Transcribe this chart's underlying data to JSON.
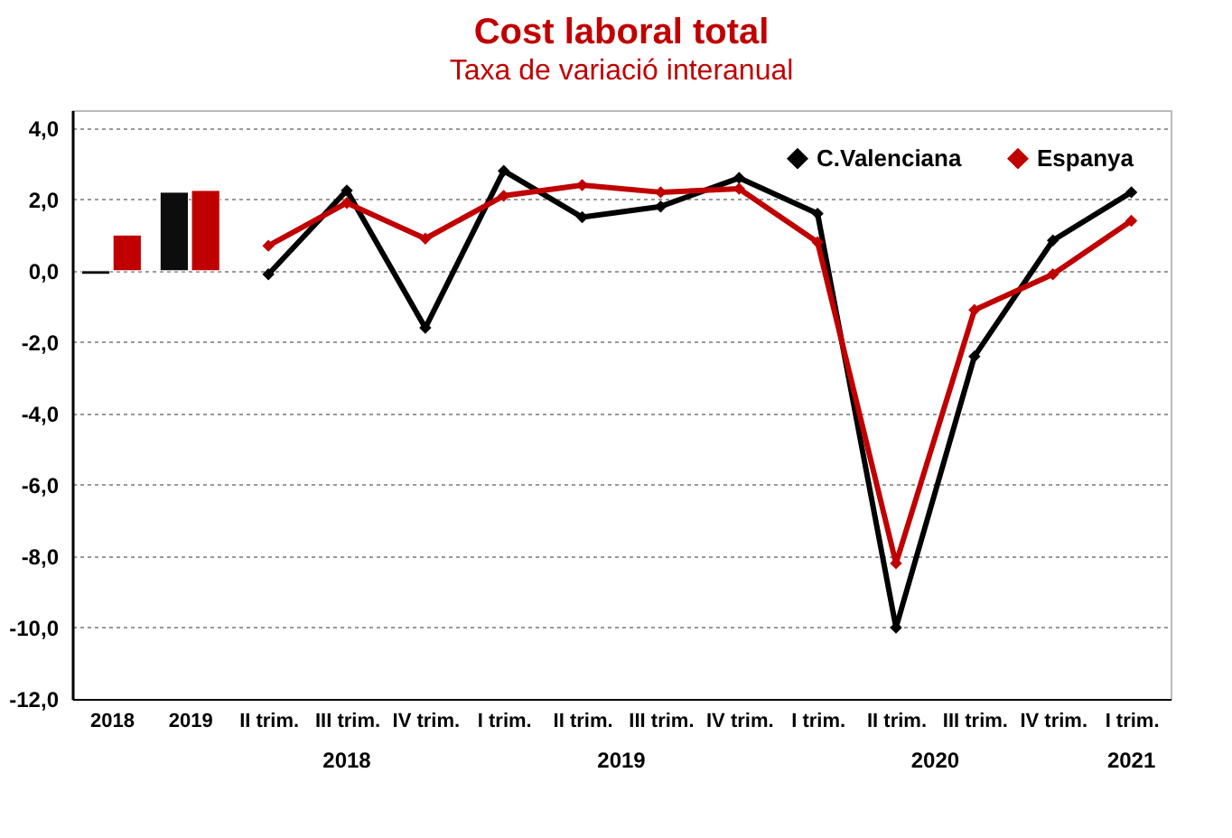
{
  "chart_data": {
    "type": "line",
    "title": "Cost laboral total",
    "subtitle": "Taxa de variació interanual",
    "categories": [
      "2018",
      "2019",
      "II trim.",
      "III trim.",
      "IV trim.",
      "I trim.",
      "II trim.",
      "III trim.",
      "IV trim.",
      "I trim.",
      "II trim.",
      "III trim.",
      "IV trim.",
      "I trim."
    ],
    "series": [
      {
        "type": "bar",
        "color": "#0d0d0d",
        "values": [
          -0.1,
          2.2,
          null,
          null,
          null,
          null,
          null,
          null,
          null,
          null,
          null,
          null,
          null,
          null
        ]
      },
      {
        "type": "bar",
        "color": "#c00000",
        "values": [
          1.0,
          2.25,
          null,
          null,
          null,
          null,
          null,
          null,
          null,
          null,
          null,
          null,
          null,
          null
        ]
      },
      {
        "name": "C.Valenciana",
        "color": "#000000",
        "values": [
          null,
          null,
          -0.1,
          2.25,
          -1.6,
          2.8,
          1.5,
          1.8,
          2.6,
          1.6,
          -10.0,
          -2.4,
          0.85,
          2.2
        ]
      },
      {
        "name": "Espanya",
        "color": "#c00000",
        "values": [
          null,
          null,
          0.7,
          1.9,
          0.9,
          2.1,
          2.4,
          2.2,
          2.3,
          0.8,
          -8.2,
          -1.1,
          -0.1,
          1.4
        ]
      }
    ],
    "annotations": [
      "2018",
      "2019",
      "2020",
      "2021"
    ],
    "ylim": [
      -12,
      4.5
    ],
    "yticks": [
      {
        "value": -12,
        "label": "-12,0"
      },
      {
        "value": -10,
        "label": "-10,0"
      },
      {
        "value": -8,
        "label": "-8,0"
      },
      {
        "value": -6,
        "label": "-6,0"
      },
      {
        "value": -4,
        "label": "-4,0"
      },
      {
        "value": -2,
        "label": "-2,0"
      },
      {
        "value": 0,
        "label": "0,0"
      },
      {
        "value": 2,
        "label": "2,0"
      },
      {
        "value": 4,
        "label": "4,0"
      }
    ],
    "grid": "y",
    "legend": "top right",
    "marker": "diamond",
    "line_style": "solid"
  }
}
